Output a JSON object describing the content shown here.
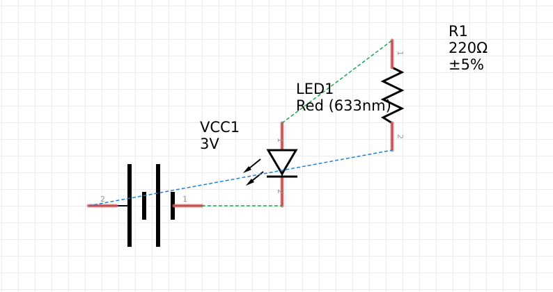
{
  "components": {
    "vcc1": {
      "ref": "VCC1",
      "value": "3V",
      "pins": [
        "1",
        "2"
      ]
    },
    "led1": {
      "ref": "LED1",
      "value": "Red (633nm)",
      "pins": [
        "1",
        "2"
      ]
    },
    "r1": {
      "ref": "R1",
      "value": "220Ω",
      "tolerance": "±5%",
      "pins": [
        "1",
        "2"
      ]
    }
  },
  "colors": {
    "pin_highlight": "#e06666",
    "wire_green": "#1aa34a",
    "wire_blue": "#1f7fd6",
    "body": "#000000",
    "pin_label": "#999999"
  }
}
